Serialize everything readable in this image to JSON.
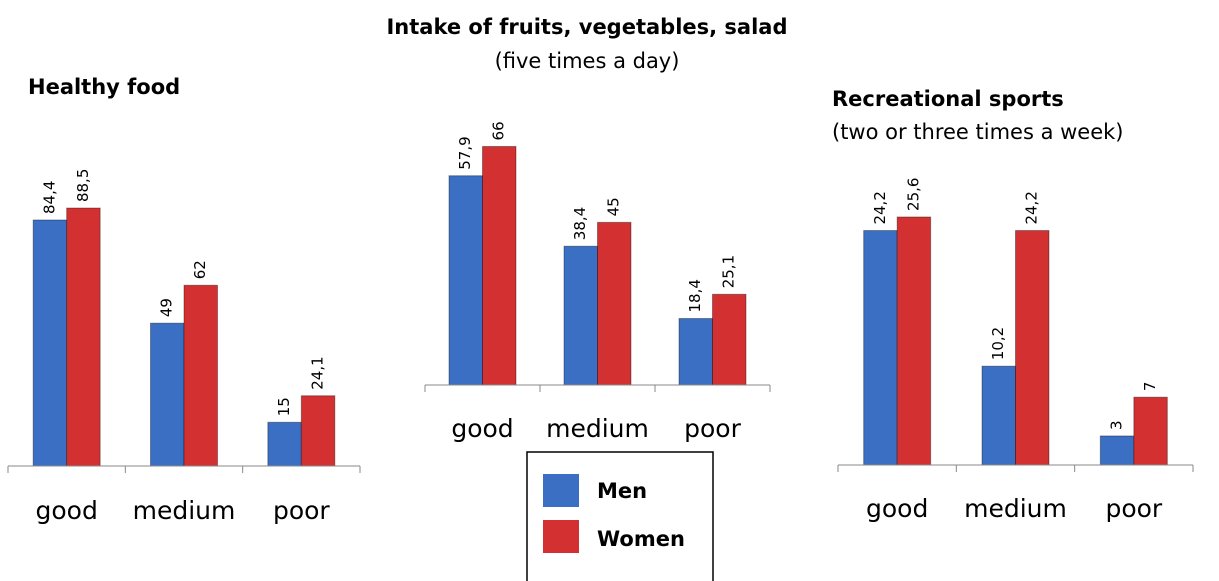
{
  "chart_data": [
    {
      "type": "bar",
      "title": "Healthy food",
      "categories": [
        "good",
        "medium",
        "poor"
      ],
      "series": [
        {
          "color": "#3a6fc4",
          "values": [
            84.4,
            49,
            15
          ],
          "value_labels": [
            "84,4",
            "49",
            "15"
          ]
        },
        {
          "color": "#d33131",
          "values": [
            88.5,
            62,
            24.1
          ],
          "value_labels": [
            "88,5",
            "62",
            "24,1"
          ]
        }
      ],
      "ylim": [
        0,
        100
      ]
    },
    {
      "type": "bar",
      "title": "Intake of fruits, vegetables, salad",
      "subtitle": "(five times a day)",
      "categories": [
        "good",
        "medium",
        "poor"
      ],
      "series": [
        {
          "name": "Men",
          "color": "#3a6fc4",
          "values": [
            57.9,
            38.4,
            18.4
          ],
          "value_labels": [
            "57,9",
            "38,4",
            "18,4"
          ]
        },
        {
          "name": "Women",
          "color": "#d33131",
          "values": [
            66,
            45,
            25.1
          ],
          "value_labels": [
            "66",
            "45",
            "25,1"
          ]
        }
      ],
      "ylim": [
        0,
        70
      ]
    },
    {
      "type": "bar",
      "title": "Recreational sports",
      "subtitle": "(two or three times a week)",
      "categories": [
        "good",
        "medium",
        "poor"
      ],
      "series": [
        {
          "color": "#3a6fc4",
          "values": [
            24.2,
            10.2,
            3
          ],
          "value_labels": [
            "24,2",
            "10,2",
            "3"
          ]
        },
        {
          "color": "#d33131",
          "values": [
            25.6,
            24.2,
            7
          ],
          "value_labels": [
            "25,6",
            "24,2",
            "7"
          ]
        }
      ],
      "ylim": [
        0,
        27
      ]
    }
  ]
}
